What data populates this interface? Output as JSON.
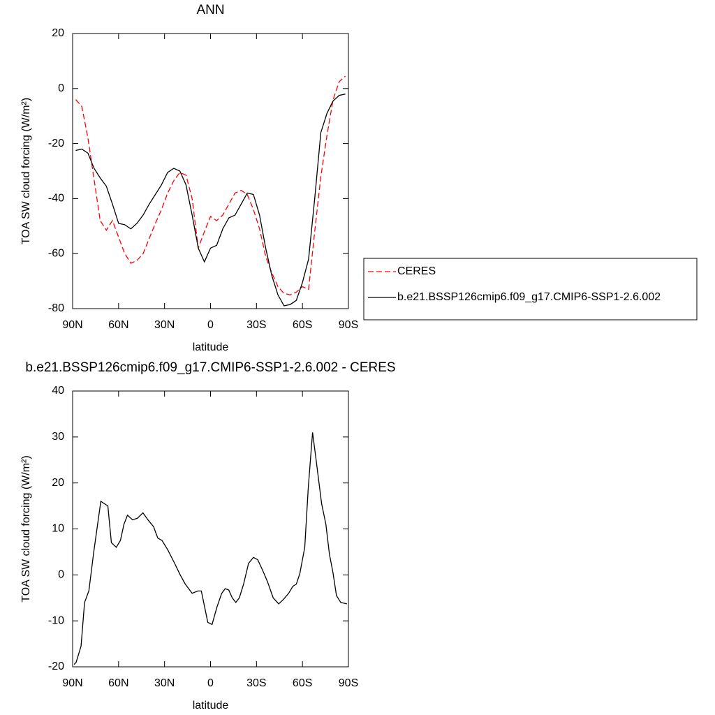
{
  "chart_data": [
    {
      "type": "line",
      "title": "ANN",
      "xlabel": "latitude",
      "ylabel": "TOA SW cloud forcing (W/m²)",
      "x": [
        88,
        84,
        80,
        76,
        72,
        68,
        64,
        60,
        56,
        52,
        48,
        44,
        40,
        36,
        32,
        28,
        24,
        20,
        16,
        12,
        8,
        4,
        0,
        -4,
        -8,
        -12,
        -16,
        -20,
        -24,
        -28,
        -32,
        -36,
        -40,
        -44,
        -48,
        -52,
        -56,
        -60,
        -64,
        -68,
        -72,
        -76,
        -80,
        -84,
        -88
      ],
      "xlim": [
        90,
        -90
      ],
      "xticks": [
        {
          "value": 90,
          "label": "90N"
        },
        {
          "value": 60,
          "label": "60N"
        },
        {
          "value": 30,
          "label": "30N"
        },
        0,
        {
          "value": -30,
          "label": "30S"
        },
        {
          "value": -60,
          "label": "60S"
        },
        {
          "value": -90,
          "label": "90S"
        }
      ],
      "ylim": [
        -80,
        20
      ],
      "yticks": [
        -80,
        -60,
        -40,
        -20,
        0,
        20
      ],
      "legend": "right",
      "series": [
        {
          "name": "CERES",
          "color": "#ff0000",
          "style": "dashed",
          "values": [
            -4,
            -6.5,
            -18,
            -33,
            -48,
            -51.5,
            -48,
            -54,
            -60,
            -63.5,
            -62.5,
            -60,
            -54.5,
            -49,
            -44,
            -38,
            -33.5,
            -30.5,
            -31.5,
            -40,
            -58,
            -52,
            -46.5,
            -48,
            -46,
            -42,
            -38,
            -37,
            -38.5,
            -44,
            -51,
            -61,
            -67,
            -72,
            -74.5,
            -75,
            -74,
            -72,
            -73,
            -52,
            -32,
            -17,
            -4,
            2.5,
            4.5
          ]
        },
        {
          "name": "b.e21.BSSP126cmip6.f09_g17.CMIP6-SSP1-2.6.002",
          "color": "#000000",
          "style": "solid",
          "values": [
            -22.5,
            -22,
            -23.5,
            -29,
            -32.5,
            -35.5,
            -42,
            -49,
            -49.5,
            -51,
            -49,
            -46,
            -42,
            -38.5,
            -35,
            -30.5,
            -29,
            -30,
            -35,
            -46,
            -58,
            -63,
            -58,
            -57,
            -51,
            -47,
            -46,
            -42,
            -38,
            -38.5,
            -46,
            -58,
            -68,
            -75,
            -79,
            -78.5,
            -77,
            -70.5,
            -62,
            -40,
            -16,
            -9,
            -4.5,
            -2.5,
            -2
          ]
        }
      ]
    },
    {
      "type": "line",
      "title": "b.e21.BSSP126cmip6.f09_g17.CMIP6-SSP1-2.6.002 - CERES",
      "xlabel": "latitude",
      "ylabel": "TOA SW cloud forcing (W/m²)",
      "x": [
        89,
        87.7,
        84.5,
        82.2,
        79.4,
        76.2,
        71.6,
        67,
        64.7,
        61.5,
        58.8,
        56.5,
        54.2,
        51,
        47.8,
        44.1,
        40.9,
        37.2,
        34.4,
        31.7,
        28,
        23.4,
        19.8,
        16.5,
        12,
        8.3,
        6,
        1.8,
        -1,
        -4.2,
        -7.3,
        -9.6,
        -11.9,
        -14.2,
        -16.5,
        -18.8,
        -21.6,
        -24.8,
        -28,
        -30.8,
        -34,
        -37.2,
        -40.9,
        -44.5,
        -47.7,
        -51,
        -53.7,
        -56,
        -58.3,
        -61.5,
        -63.8,
        -66.6,
        -69.3,
        -72.5,
        -75.3,
        -77.6,
        -79.9,
        -82.2,
        -85,
        -89
      ],
      "xlim": [
        90,
        -90
      ],
      "xticks": [
        {
          "value": 90,
          "label": "90N"
        },
        {
          "value": 60,
          "label": "60N"
        },
        {
          "value": 30,
          "label": "30N"
        },
        0,
        {
          "value": -30,
          "label": "30S"
        },
        {
          "value": -60,
          "label": "60S"
        },
        {
          "value": -90,
          "label": "90S"
        }
      ],
      "ylim": [
        -20,
        40
      ],
      "yticks": [
        -20,
        -10,
        0,
        10,
        20,
        30,
        40
      ],
      "series": [
        {
          "color": "#000000",
          "style": "solid",
          "values": [
            -19.5,
            -19,
            -15.5,
            -6,
            -3.5,
            5,
            16,
            15,
            7,
            6,
            7.5,
            11,
            13,
            12,
            12.3,
            13.5,
            12,
            10.5,
            8,
            7.5,
            5.5,
            2.5,
            0,
            -2,
            -4,
            -3.5,
            -3.5,
            -10.3,
            -10.8,
            -7,
            -4,
            -3,
            -3.3,
            -5,
            -6,
            -5,
            -2,
            2.5,
            3.8,
            3.3,
            1,
            -1.5,
            -5,
            -6.3,
            -5.3,
            -4,
            -2.5,
            -2,
            0.3,
            6,
            19,
            31,
            24,
            15.5,
            11,
            4.5,
            0.5,
            -4.5,
            -6,
            -6.3
          ]
        }
      ]
    }
  ]
}
